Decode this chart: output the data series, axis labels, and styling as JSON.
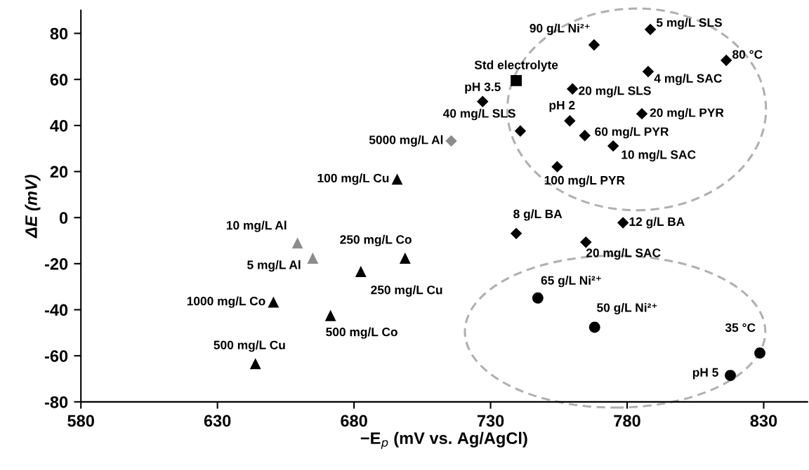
{
  "chart_data": {
    "type": "scatter",
    "xlabel": "−E$_{p}$ (mV vs. Ag/AgCl)",
    "ylabel": "ΔE (mV)",
    "xlim": [
      580,
      846
    ],
    "xticks": [
      580,
      630,
      680,
      730,
      780,
      830
    ],
    "ylim": [
      -80,
      90
    ],
    "yticks": [
      -80,
      -60,
      -40,
      -20,
      0,
      20,
      40,
      60,
      80
    ],
    "grid": false,
    "series": [
      {
        "marker": "square",
        "color": "#000000",
        "x": [
          739.4
        ],
        "values": [
          59.5
        ]
      },
      {
        "marker": "triangle",
        "color": "#000000",
        "x": [
          695.8,
          698.7,
          682.5,
          650.5,
          671.4,
          643.9
        ],
        "values": [
          16.7,
          -17.6,
          -23.4,
          -36.7,
          -42.5,
          -63.4
        ]
      },
      {
        "marker": "triangle",
        "color": "#8c8c8c",
        "x": [
          659.3,
          664.9
        ],
        "values": [
          -11.0,
          -17.6
        ]
      },
      {
        "marker": "diamond",
        "color": "#8c8c8c",
        "x": [
          715.6
        ],
        "values": [
          33.3
        ]
      },
      {
        "marker": "diamond",
        "color": "#000000",
        "x": [
          727.1,
          740.9,
          767.9,
          788.5,
          816.3,
          787.7,
          760.0,
          759.0,
          785.4,
          764.5,
          774.9,
          754.4,
          739.4,
          778.5,
          764.9
        ],
        "values": [
          50.4,
          37.6,
          75.0,
          81.7,
          68.3,
          63.4,
          55.9,
          42.0,
          45.1,
          35.6,
          31.1,
          22.1,
          -6.9,
          -2.2,
          -10.7
        ]
      },
      {
        "marker": "circle",
        "color": "#000000",
        "x": [
          747.3,
          768.1,
          828.6,
          817.8
        ],
        "values": [
          -34.9,
          -47.6,
          -58.8,
          -68.5
        ]
      }
    ],
    "annotations": [
      {
        "text": "Std electrolyte",
        "x": 739.4,
        "y": 59.5
      },
      {
        "text": "pH 3.5",
        "x": 727.1,
        "y": 50.4
      },
      {
        "text": "40 mg/L SLS",
        "x": 740.9,
        "y": 37.6
      },
      {
        "text": "5000 mg/L Al",
        "x": 715.6,
        "y": 33.3
      },
      {
        "text": "100 mg/L Cu",
        "x": 695.8,
        "y": 16.7
      },
      {
        "text": "10 mg/L Al",
        "x": 659.3,
        "y": -11.0
      },
      {
        "text": "5 mg/L Al",
        "x": 664.9,
        "y": -17.6
      },
      {
        "text": "250 mg/L Co",
        "x": 698.7,
        "y": -17.6
      },
      {
        "text": "250 mg/L Cu",
        "x": 682.5,
        "y": -23.4
      },
      {
        "text": "1000 mg/L Co",
        "x": 650.5,
        "y": -36.7
      },
      {
        "text": "500 mg/L Co",
        "x": 671.4,
        "y": -42.5
      },
      {
        "text": "500 mg/L Cu",
        "x": 643.9,
        "y": -63.4
      },
      {
        "text": "90 g/L Ni²⁺",
        "x": 767.9,
        "y": 75.0
      },
      {
        "text": "5 mg/L SLS",
        "x": 788.5,
        "y": 81.7
      },
      {
        "text": "80 °C",
        "x": 816.3,
        "y": 68.3
      },
      {
        "text": "4 mg/L SAC",
        "x": 787.7,
        "y": 63.4
      },
      {
        "text": "20 mg/L SLS",
        "x": 760.0,
        "y": 55.9
      },
      {
        "text": "pH 2",
        "x": 759.0,
        "y": 42.0
      },
      {
        "text": "20 mg/L PYR",
        "x": 785.4,
        "y": 45.1
      },
      {
        "text": "60 mg/L PYR",
        "x": 764.5,
        "y": 35.6
      },
      {
        "text": "10 mg/L SAC",
        "x": 774.9,
        "y": 31.1
      },
      {
        "text": "100 mg/L PYR",
        "x": 754.4,
        "y": 22.1
      },
      {
        "text": "8 g/L BA",
        "x": 739.4,
        "y": -6.9
      },
      {
        "text": "12 g/L BA",
        "x": 778.5,
        "y": -2.2
      },
      {
        "text": "20 mg/L SAC",
        "x": 764.9,
        "y": -10.7
      },
      {
        "text": "65 g/L Ni²⁺",
        "x": 747.3,
        "y": -34.9
      },
      {
        "text": "50 g/L Ni²⁺",
        "x": 768.1,
        "y": -47.6
      },
      {
        "text": "35 °C",
        "x": 828.6,
        "y": -58.8
      },
      {
        "text": "pH 5",
        "x": 817.8,
        "y": -68.5
      }
    ]
  }
}
